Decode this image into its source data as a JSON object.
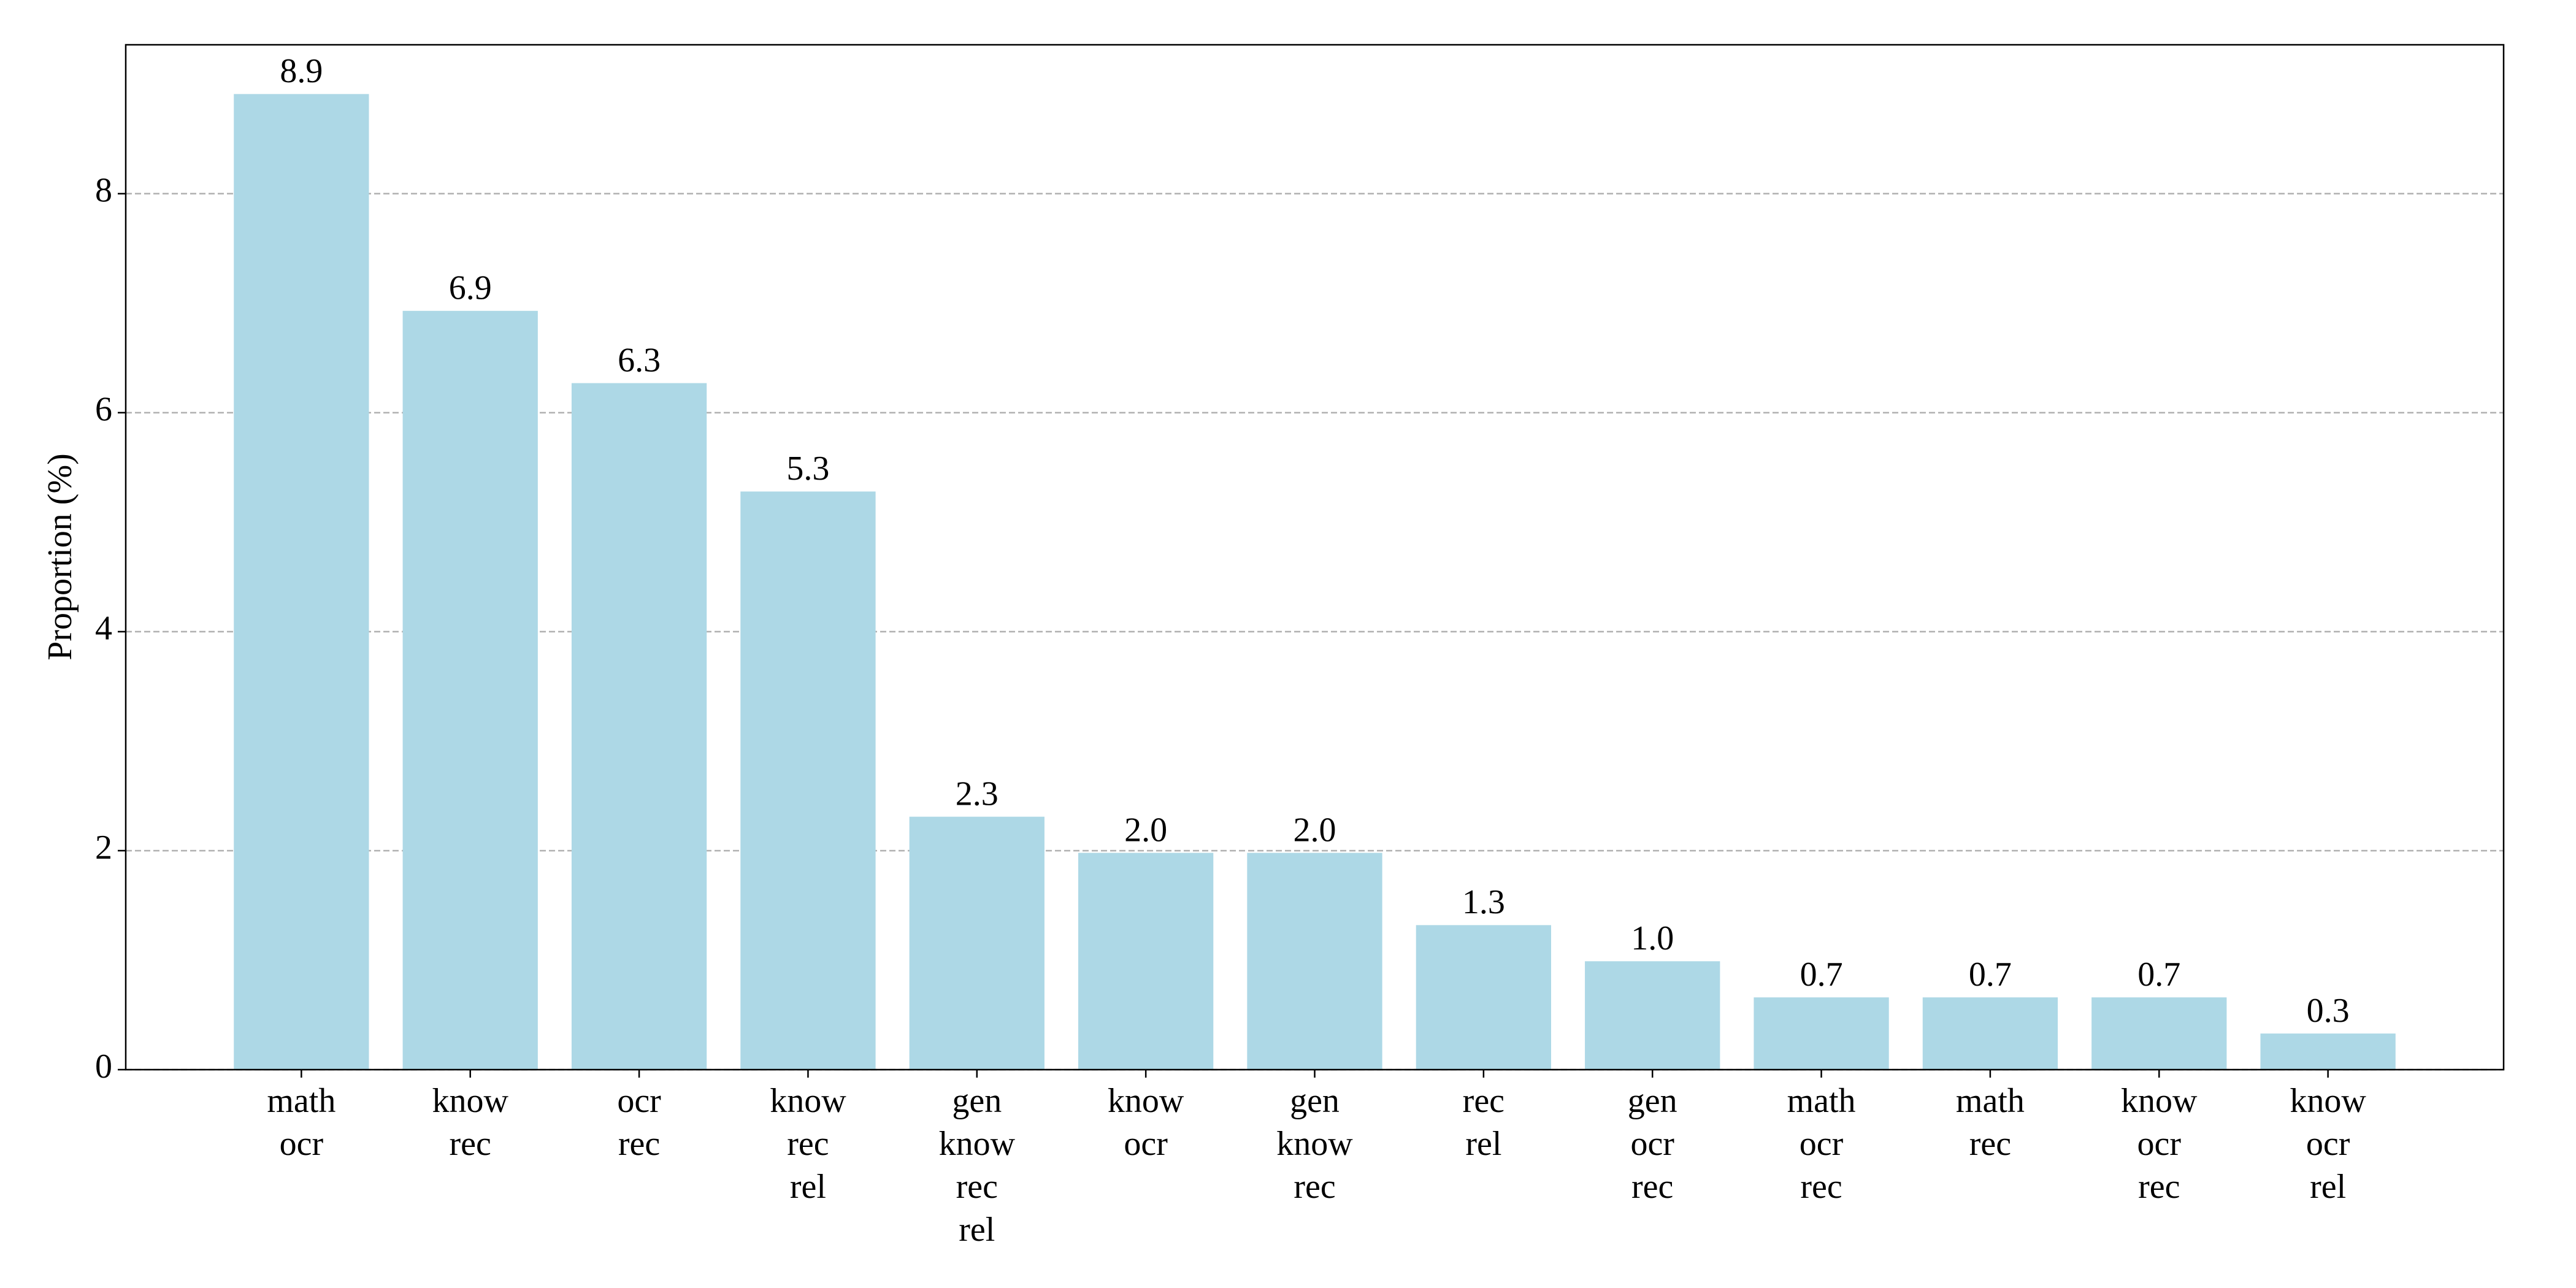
{
  "chart_data": {
    "type": "bar",
    "ylabel": "Proportion (%)",
    "categories": [
      [
        "math",
        "ocr"
      ],
      [
        "know",
        "rec"
      ],
      [
        "ocr",
        "rec"
      ],
      [
        "know",
        "rec",
        "rel"
      ],
      [
        "gen",
        "know",
        "rec",
        "rel"
      ],
      [
        "know",
        "ocr"
      ],
      [
        "gen",
        "know",
        "rec"
      ],
      [
        "rec",
        "rel"
      ],
      [
        "gen",
        "ocr",
        "rec"
      ],
      [
        "math",
        "ocr",
        "rec"
      ],
      [
        "math",
        "rec"
      ],
      [
        "know",
        "ocr",
        "rec"
      ],
      [
        "know",
        "ocr",
        "rel"
      ]
    ],
    "values": [
      8.91,
      6.93,
      6.27,
      5.28,
      2.31,
      1.98,
      1.98,
      1.32,
      0.99,
      0.66,
      0.66,
      0.66,
      0.33
    ],
    "value_labels": [
      "8.9",
      "6.9",
      "6.3",
      "5.3",
      "2.3",
      "2.0",
      "2.0",
      "1.3",
      "1.0",
      "0.7",
      "0.7",
      "0.7",
      "0.3"
    ],
    "color": "#add8e6",
    "ylim": [
      0,
      9.36
    ],
    "yticks": [
      0,
      2,
      4,
      6,
      8
    ],
    "grid": true
  }
}
